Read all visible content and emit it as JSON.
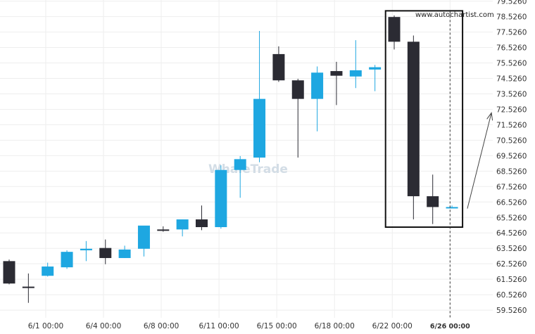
{
  "source_label": "www.autochartist.com",
  "watermark": "WhaleTrade",
  "chart_data": {
    "type": "candlestick",
    "y_axis_position": "right",
    "ylim": [
      59.03,
      79.6
    ],
    "y_ticks": [
      59.526,
      60.526,
      61.526,
      62.526,
      63.526,
      64.526,
      65.526,
      66.526,
      67.526,
      68.526,
      69.526,
      70.526,
      71.526,
      72.526,
      73.526,
      74.526,
      75.526,
      76.526,
      77.526,
      78.526,
      79.526
    ],
    "y_tick_labels": [
      "59.5260",
      "60.5260",
      "61.5260",
      "62.5260",
      "63.5260",
      "64.5260",
      "65.5260",
      "66.5260",
      "67.5260",
      "68.5260",
      "69.5260",
      "70.5260",
      "71.5260",
      "72.5260",
      "73.5260",
      "74.5260",
      "75.5260",
      "76.5260",
      "77.5260",
      "78.5260",
      "79.5260"
    ],
    "x_ticks": [
      {
        "index": 1.9,
        "label": "6/1 00:00"
      },
      {
        "index": 4.9,
        "label": "6/4 00:00"
      },
      {
        "index": 7.9,
        "label": "6/8 00:00"
      },
      {
        "index": 10.9,
        "label": "6/11 00:00"
      },
      {
        "index": 13.9,
        "label": "6/15 00:00"
      },
      {
        "index": 16.9,
        "label": "6/18 00:00"
      },
      {
        "index": 19.9,
        "label": "6/22 00:00"
      },
      {
        "index": 22.9,
        "label": "6/26 00:00",
        "bold": true
      }
    ],
    "colors": {
      "up": "#1ea7e1",
      "down": "#2b2b33",
      "grid": "#eeeeee",
      "box": "#111111"
    },
    "candles": [
      {
        "open": 62.7,
        "high": 62.8,
        "low": 61.2,
        "close": 61.25
      },
      {
        "open": 61.05,
        "high": 61.9,
        "low": 60.0,
        "close": 61.0
      },
      {
        "open": 61.75,
        "high": 62.6,
        "low": 61.7,
        "close": 62.35
      },
      {
        "open": 62.3,
        "high": 63.4,
        "low": 62.2,
        "close": 63.3
      },
      {
        "open": 63.4,
        "high": 64.0,
        "low": 62.7,
        "close": 63.5
      },
      {
        "open": 63.55,
        "high": 64.1,
        "low": 62.5,
        "close": 62.9
      },
      {
        "open": 62.9,
        "high": 63.7,
        "low": 62.9,
        "close": 63.45
      },
      {
        "open": 63.5,
        "high": 64.9,
        "low": 63.0,
        "close": 65.0
      },
      {
        "open": 64.75,
        "high": 64.95,
        "low": 64.6,
        "close": 64.7
      },
      {
        "open": 64.75,
        "high": 65.4,
        "low": 64.3,
        "close": 65.4
      },
      {
        "open": 65.4,
        "high": 66.3,
        "low": 64.7,
        "close": 64.9
      },
      {
        "open": 64.9,
        "high": 68.9,
        "low": 64.8,
        "close": 68.6
      },
      {
        "open": 68.6,
        "high": 69.5,
        "low": 66.8,
        "close": 69.3
      },
      {
        "open": 69.4,
        "high": 77.6,
        "low": 69.1,
        "close": 73.2
      },
      {
        "open": 76.1,
        "high": 76.6,
        "low": 74.3,
        "close": 74.4
      },
      {
        "open": 74.4,
        "high": 74.5,
        "low": 69.4,
        "close": 73.2
      },
      {
        "open": 73.2,
        "high": 75.3,
        "low": 71.1,
        "close": 74.9
      },
      {
        "open": 75.0,
        "high": 75.6,
        "low": 72.8,
        "close": 74.7
      },
      {
        "open": 74.65,
        "high": 77.0,
        "low": 73.9,
        "close": 75.05
      },
      {
        "open": 75.1,
        "high": 75.4,
        "low": 73.7,
        "close": 75.25
      },
      {
        "open": 78.5,
        "high": 78.6,
        "low": 76.4,
        "close": 76.9
      },
      {
        "open": 76.9,
        "high": 77.3,
        "low": 65.4,
        "close": 66.9
      },
      {
        "open": 66.9,
        "high": 68.3,
        "low": 65.1,
        "close": 66.2
      },
      {
        "open": 66.2,
        "high": 66.3,
        "low": 66.15,
        "close": 66.2
      }
    ],
    "pattern_box": {
      "start_index": 19.55,
      "end_index": 23.55,
      "y_top": 78.9,
      "y_bottom": 64.9
    },
    "current_time_index": 22.9,
    "forecast_arrow": {
      "from": {
        "index": 23.8,
        "value": 66.1
      },
      "to": {
        "index": 25.05,
        "value": 72.3
      }
    }
  }
}
